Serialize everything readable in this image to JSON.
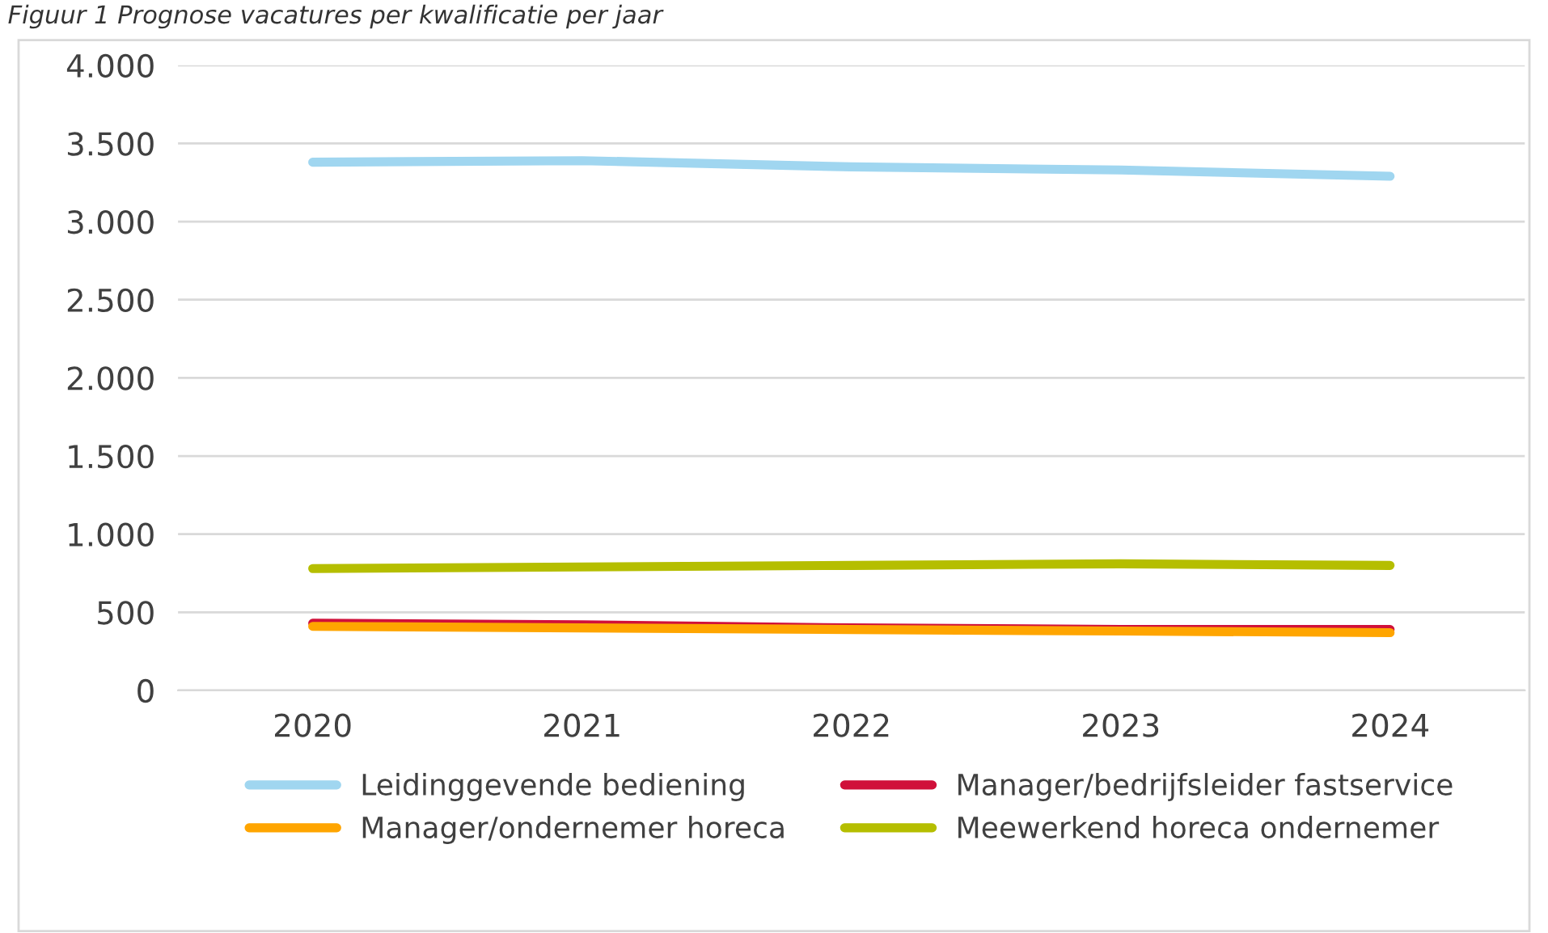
{
  "chart_data": {
    "type": "line",
    "title": "Figuur 1 Prognose vacatures per kwalificatie per jaar",
    "categories": [
      "2020",
      "2021",
      "2022",
      "2023",
      "2024"
    ],
    "series": [
      {
        "name": "Leidinggevende bediening",
        "color": "#a0d6f0",
        "values": [
          3380,
          3390,
          3350,
          3330,
          3290
        ]
      },
      {
        "name": "Manager/bedrijfsleider fastservice",
        "color": "#d0103a",
        "values": [
          430,
          420,
          400,
          390,
          390
        ]
      },
      {
        "name": "Manager/ondernemer horeca",
        "color": "#ffa500",
        "values": [
          410,
          400,
          390,
          380,
          370
        ]
      },
      {
        "name": "Meewerkend horeca ondernemer",
        "color": "#b5be00",
        "values": [
          780,
          790,
          800,
          810,
          800
        ]
      }
    ],
    "ylim": [
      0,
      4000
    ],
    "yticks": [
      {
        "value": 0,
        "label": "0"
      },
      {
        "value": 500,
        "label": "500"
      },
      {
        "value": 1000,
        "label": "1.000"
      },
      {
        "value": 1500,
        "label": "1.500"
      },
      {
        "value": 2000,
        "label": "2.000"
      },
      {
        "value": 2500,
        "label": "2.500"
      },
      {
        "value": 3000,
        "label": "3.000"
      },
      {
        "value": 3500,
        "label": "3.500"
      },
      {
        "value": 4000,
        "label": "4.000"
      }
    ],
    "grid": "y",
    "legend": "bottom",
    "marker": "none",
    "line_style": "solid"
  }
}
